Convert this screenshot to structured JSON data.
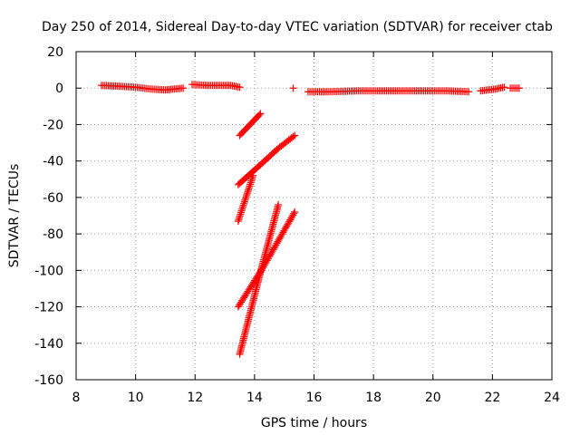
{
  "chart_data": {
    "type": "scatter",
    "title": "Day 250 of 2014, Sidereal Day-to-day VTEC variation (SDTVAR) for receiver ctab",
    "xlabel": "GPS time / hours",
    "ylabel": "SDTVAR / TECUs",
    "xlim": [
      8,
      24
    ],
    "ylim": [
      -160,
      20
    ],
    "xticks": [
      "8",
      "10",
      "12",
      "14",
      "16",
      "18",
      "20",
      "22",
      "24"
    ],
    "yticks": [
      "20",
      "0",
      "-20",
      "-40",
      "-60",
      "-80",
      "-100",
      "-120",
      "-140",
      "-160"
    ],
    "grid": true,
    "marker": "+",
    "color": "#ff0000",
    "series": [
      {
        "points": [
          [
            8.85,
            1.5
          ],
          [
            9.5,
            1.0
          ],
          [
            10.0,
            0.5
          ],
          [
            10.5,
            -0.5
          ],
          [
            11.0,
            -1.0
          ],
          [
            11.6,
            0.0
          ]
        ]
      },
      {
        "points": [
          [
            11.9,
            2.0
          ],
          [
            12.4,
            1.5
          ],
          [
            12.9,
            1.5
          ],
          [
            13.2,
            1.5
          ],
          [
            13.5,
            0.5
          ]
        ]
      },
      {
        "points": [
          [
            15.3,
            0.0
          ]
        ]
      },
      {
        "points": [
          [
            15.8,
            -2.0
          ],
          [
            16.5,
            -2.0
          ],
          [
            17.5,
            -1.5
          ],
          [
            18.5,
            -1.5
          ],
          [
            19.0,
            -1.5
          ],
          [
            19.5,
            -1.5
          ],
          [
            20.5,
            -1.5
          ],
          [
            21.2,
            -2.0
          ]
        ]
      },
      {
        "points": [
          [
            21.6,
            -1.5
          ],
          [
            22.1,
            -0.5
          ],
          [
            22.4,
            0.5
          ]
        ]
      },
      {
        "points": [
          [
            22.6,
            0.0
          ],
          [
            22.9,
            0.0
          ]
        ]
      },
      {
        "points": [
          [
            13.5,
            -26.0
          ],
          [
            14.2,
            -14.0
          ]
        ]
      },
      {
        "points": [
          [
            13.45,
            -53.0
          ],
          [
            14.2,
            -42.0
          ],
          [
            14.8,
            -33.0
          ],
          [
            15.35,
            -26.0
          ]
        ]
      },
      {
        "points": [
          [
            13.45,
            -73.0
          ],
          [
            13.95,
            -48.0
          ]
        ]
      },
      {
        "points": [
          [
            13.5,
            -146.0
          ],
          [
            14.2,
            -101.0
          ],
          [
            14.8,
            -64.0
          ]
        ]
      },
      {
        "points": [
          [
            13.45,
            -120.0
          ],
          [
            14.3,
            -98.0
          ],
          [
            15.35,
            -68.0
          ]
        ]
      }
    ]
  }
}
